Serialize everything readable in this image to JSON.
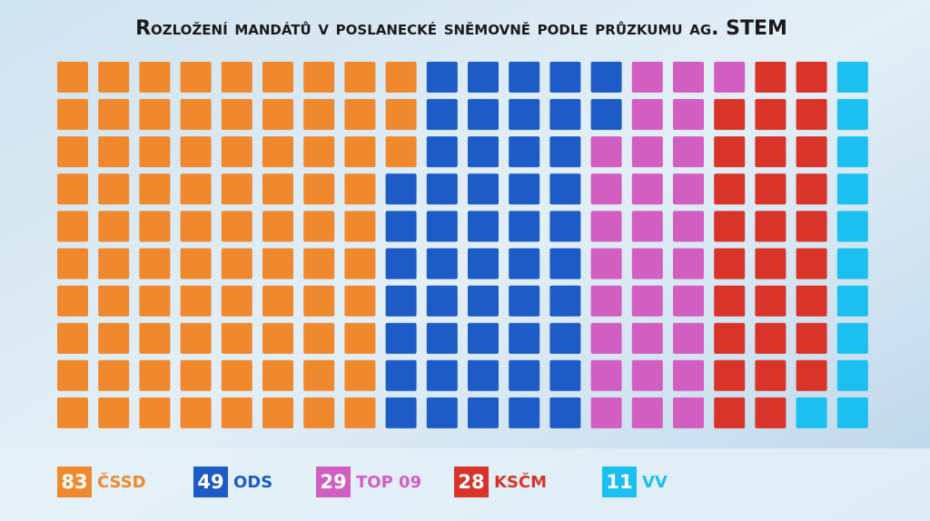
{
  "chart_data": {
    "type": "waffle",
    "title": "Rozložení mandátů v poslanecké sněmovně podle průzkumu ag. STEM",
    "series": [
      {
        "name": "ČSSD",
        "color": "#f0892e",
        "values": [
          83
        ]
      },
      {
        "name": "ODS",
        "color": "#1d5cc6",
        "values": [
          49
        ]
      },
      {
        "name": "TOP 09",
        "color": "#d35ec2",
        "values": [
          29
        ]
      },
      {
        "name": "KSČM",
        "color": "#d8342a",
        "values": [
          28
        ]
      },
      {
        "name": "VV",
        "color": "#1cc0f0",
        "values": [
          11
        ]
      }
    ]
  }
}
